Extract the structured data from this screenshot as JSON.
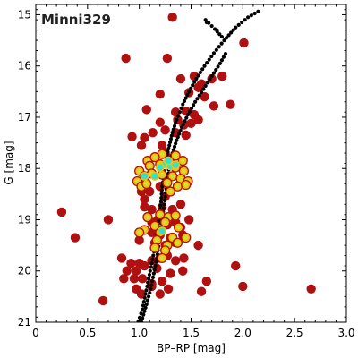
{
  "chart_data": {
    "type": "scatter",
    "title": "Minni329",
    "xlabel": "BP–RP [mag]",
    "ylabel": "G [mag]",
    "xlim": [
      0,
      3.0
    ],
    "ylim": [
      21,
      14.8
    ],
    "y_inverted": true,
    "grid": false,
    "x_ticks": [
      "0",
      "0.5",
      "1.0",
      "1.5",
      "2.0",
      "2.5",
      "3.0"
    ],
    "x_tick_values": [
      0,
      0.5,
      1.0,
      1.5,
      2.0,
      2.5,
      3.0
    ],
    "y_ticks": [
      "15",
      "16",
      "17",
      "18",
      "19",
      "20",
      "21"
    ],
    "y_tick_values": [
      15,
      16,
      17,
      18,
      19,
      20,
      21
    ],
    "colors": {
      "field": "#b01010",
      "member_ring": "#f5c400",
      "member_core": "#c8e04a",
      "member_high": "#38e0cc",
      "isochrone": "#000000"
    },
    "series": [
      {
        "kind": "field",
        "points": [
          [
            1.32,
            15.05
          ],
          [
            2.01,
            15.55
          ],
          [
            0.87,
            15.85
          ],
          [
            1.27,
            15.85
          ],
          [
            1.4,
            16.25
          ],
          [
            1.53,
            16.2
          ],
          [
            1.6,
            16.35
          ],
          [
            1.7,
            16.25
          ],
          [
            1.8,
            16.2
          ],
          [
            1.57,
            16.42
          ],
          [
            1.63,
            16.6
          ],
          [
            1.2,
            16.55
          ],
          [
            1.48,
            16.52
          ],
          [
            1.72,
            16.78
          ],
          [
            1.88,
            16.75
          ],
          [
            1.45,
            16.88
          ],
          [
            1.53,
            16.95
          ],
          [
            1.35,
            16.9
          ],
          [
            1.57,
            17.05
          ],
          [
            1.07,
            16.85
          ],
          [
            1.37,
            17.05
          ],
          [
            1.43,
            17.15
          ],
          [
            1.2,
            17.1
          ],
          [
            1.5,
            17.12
          ],
          [
            1.25,
            17.25
          ],
          [
            1.13,
            17.3
          ],
          [
            1.35,
            17.3
          ],
          [
            1.02,
            17.55
          ],
          [
            1.45,
            17.35
          ],
          [
            1.05,
            17.4
          ],
          [
            1.22,
            17.55
          ],
          [
            1.25,
            17.7
          ],
          [
            1.3,
            17.8
          ],
          [
            0.93,
            17.38
          ],
          [
            1.0,
            18.25
          ],
          [
            1.02,
            18.45
          ],
          [
            1.05,
            18.6
          ],
          [
            1.1,
            18.45
          ],
          [
            1.2,
            18.35
          ],
          [
            1.25,
            18.55
          ],
          [
            1.05,
            18.75
          ],
          [
            1.12,
            18.8
          ],
          [
            1.22,
            18.75
          ],
          [
            1.32,
            18.8
          ],
          [
            1.4,
            18.7
          ],
          [
            1.08,
            18.95
          ],
          [
            1.12,
            19.05
          ],
          [
            1.18,
            19.0
          ],
          [
            1.27,
            19.1
          ],
          [
            1.35,
            19.05
          ],
          [
            1.4,
            19.15
          ],
          [
            1.05,
            19.2
          ],
          [
            1.12,
            19.25
          ],
          [
            1.2,
            19.3
          ],
          [
            1.3,
            19.35
          ],
          [
            1.42,
            19.3
          ],
          [
            1.48,
            19.0
          ],
          [
            0.7,
            19.0
          ],
          [
            1.0,
            19.4
          ],
          [
            1.15,
            19.45
          ],
          [
            1.25,
            19.5
          ],
          [
            1.35,
            19.45
          ],
          [
            1.45,
            19.35
          ],
          [
            1.57,
            19.5
          ],
          [
            0.25,
            18.85
          ],
          [
            0.38,
            19.35
          ],
          [
            0.83,
            19.75
          ],
          [
            0.92,
            19.85
          ],
          [
            1.0,
            19.85
          ],
          [
            0.88,
            20.0
          ],
          [
            0.97,
            20.0
          ],
          [
            1.05,
            19.9
          ],
          [
            1.12,
            19.8
          ],
          [
            1.2,
            19.75
          ],
          [
            1.27,
            19.7
          ],
          [
            1.35,
            19.8
          ],
          [
            1.17,
            19.95
          ],
          [
            1.3,
            20.05
          ],
          [
            1.42,
            20.0
          ],
          [
            0.95,
            20.15
          ],
          [
            1.03,
            20.15
          ],
          [
            1.12,
            20.25
          ],
          [
            1.22,
            20.2
          ],
          [
            1.28,
            20.35
          ],
          [
            0.85,
            20.15
          ],
          [
            0.97,
            20.35
          ],
          [
            1.02,
            20.45
          ],
          [
            1.12,
            20.3
          ],
          [
            1.2,
            20.45
          ],
          [
            0.65,
            20.58
          ],
          [
            1.6,
            20.4
          ],
          [
            1.65,
            20.2
          ],
          [
            1.93,
            19.9
          ],
          [
            2.0,
            20.3
          ],
          [
            2.66,
            20.35
          ],
          [
            1.43,
            19.75
          ]
        ]
      },
      {
        "kind": "member",
        "points": [
          [
            1.22,
            17.72
          ],
          [
            1.08,
            17.85
          ],
          [
            1.15,
            17.78
          ],
          [
            1.35,
            17.75
          ],
          [
            1.42,
            17.85
          ],
          [
            1.1,
            17.95
          ],
          [
            1.2,
            17.92
          ],
          [
            1.3,
            17.9
          ],
          [
            1.35,
            17.98
          ],
          [
            1.43,
            18.05
          ],
          [
            1.0,
            18.05
          ],
          [
            1.05,
            18.15
          ],
          [
            1.12,
            18.1
          ],
          [
            1.22,
            18.12
          ],
          [
            1.32,
            18.15
          ],
          [
            1.4,
            18.2
          ],
          [
            1.47,
            18.25
          ],
          [
            0.98,
            18.25
          ],
          [
            1.02,
            18.35
          ],
          [
            1.07,
            18.3
          ],
          [
            1.27,
            18.28
          ],
          [
            1.37,
            18.35
          ],
          [
            1.45,
            18.32
          ],
          [
            1.3,
            18.45
          ],
          [
            1.08,
            18.95
          ],
          [
            1.2,
            18.9
          ],
          [
            1.28,
            18.95
          ],
          [
            1.35,
            18.92
          ],
          [
            1.15,
            19.12
          ],
          [
            1.25,
            19.05
          ],
          [
            1.38,
            19.15
          ],
          [
            1.05,
            19.2
          ],
          [
            1.2,
            19.25
          ],
          [
            1.32,
            19.35
          ],
          [
            1.17,
            19.4
          ],
          [
            1.27,
            19.5
          ],
          [
            1.37,
            19.45
          ],
          [
            1.15,
            19.55
          ],
          [
            1.25,
            19.6
          ],
          [
            1.22,
            19.75
          ],
          [
            1.0,
            19.25
          ],
          [
            1.45,
            19.35
          ]
        ]
      },
      {
        "kind": "member-high",
        "points": [
          [
            1.25,
            17.92
          ],
          [
            1.3,
            17.95
          ],
          [
            1.35,
            17.93
          ],
          [
            1.2,
            17.98
          ],
          [
            1.28,
            17.85
          ],
          [
            1.05,
            18.15
          ],
          [
            1.15,
            18.15
          ],
          [
            1.22,
            19.22
          ]
        ]
      }
    ],
    "isochrone_curves": [
      [
        [
          0.99,
          20.99
        ],
        [
          1.03,
          20.75
        ],
        [
          1.06,
          20.45
        ],
        [
          1.09,
          20.15
        ],
        [
          1.12,
          19.85
        ],
        [
          1.15,
          19.55
        ],
        [
          1.17,
          19.25
        ],
        [
          1.19,
          18.95
        ],
        [
          1.21,
          18.65
        ],
        [
          1.22,
          18.35
        ],
        [
          1.24,
          18.05
        ],
        [
          1.26,
          17.8
        ],
        [
          1.29,
          17.55
        ],
        [
          1.32,
          17.3
        ],
        [
          1.36,
          17.05
        ],
        [
          1.42,
          16.75
        ],
        [
          1.48,
          16.5
        ],
        [
          1.55,
          16.25
        ],
        [
          1.63,
          16.0
        ],
        [
          1.72,
          15.75
        ],
        [
          1.82,
          15.5
        ],
        [
          1.93,
          15.25
        ],
        [
          2.05,
          15.05
        ],
        [
          2.18,
          14.9
        ]
      ],
      [
        [
          1.02,
          20.99
        ],
        [
          1.07,
          20.65
        ],
        [
          1.11,
          20.35
        ],
        [
          1.14,
          20.05
        ],
        [
          1.17,
          19.75
        ],
        [
          1.19,
          19.45
        ],
        [
          1.21,
          19.15
        ],
        [
          1.23,
          18.85
        ],
        [
          1.25,
          18.55
        ],
        [
          1.27,
          18.25
        ],
        [
          1.29,
          17.95
        ],
        [
          1.32,
          17.7
        ],
        [
          1.36,
          17.45
        ],
        [
          1.41,
          17.2
        ],
        [
          1.47,
          16.95
        ],
        [
          1.54,
          16.7
        ],
        [
          1.62,
          16.45
        ],
        [
          1.7,
          16.2
        ],
        [
          1.78,
          15.95
        ],
        [
          1.85,
          15.7
        ]
      ],
      [
        [
          1.64,
          15.1
        ],
        [
          1.73,
          15.28
        ],
        [
          1.82,
          15.48
        ]
      ]
    ]
  }
}
